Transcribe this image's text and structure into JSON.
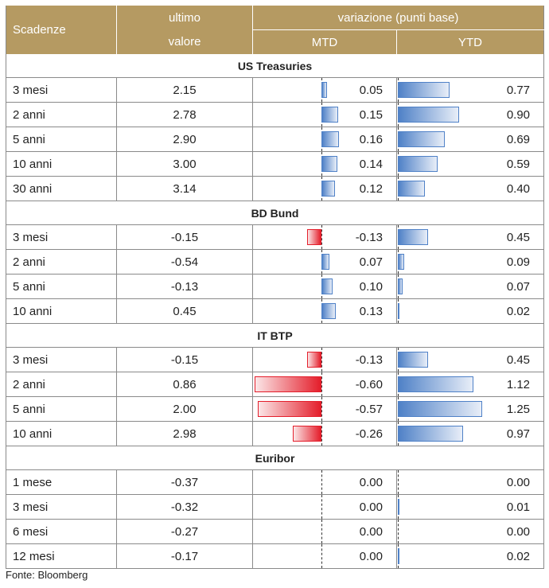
{
  "header": {
    "scadenze": "Scadenze",
    "ultimo_line1": "ultimo",
    "ultimo_line2": "valore",
    "variazione": "variazione (punti base)",
    "mtd": "MTD",
    "ytd": "YTD"
  },
  "sections": [
    {
      "title": "US Treasuries",
      "rows": [
        {
          "label": "3 mesi",
          "value": "2.15",
          "mtd": "0.05",
          "ytd": "0.77"
        },
        {
          "label": "2 anni",
          "value": "2.78",
          "mtd": "0.15",
          "ytd": "0.90"
        },
        {
          "label": "5 anni",
          "value": "2.90",
          "mtd": "0.16",
          "ytd": "0.69"
        },
        {
          "label": "10 anni",
          "value": "3.00",
          "mtd": "0.14",
          "ytd": "0.59"
        },
        {
          "label": "30 anni",
          "value": "3.14",
          "mtd": "0.12",
          "ytd": "0.40"
        }
      ]
    },
    {
      "title": "BD Bund",
      "rows": [
        {
          "label": "3 mesi",
          "value": "-0.15",
          "mtd": "-0.13",
          "ytd": "0.45"
        },
        {
          "label": "2 anni",
          "value": "-0.54",
          "mtd": "0.07",
          "ytd": "0.09"
        },
        {
          "label": "5 anni",
          "value": "-0.13",
          "mtd": "0.10",
          "ytd": "0.07"
        },
        {
          "label": "10 anni",
          "value": "0.45",
          "mtd": "0.13",
          "ytd": "0.02"
        }
      ]
    },
    {
      "title": "IT BTP",
      "rows": [
        {
          "label": "3 mesi",
          "value": "-0.15",
          "mtd": "-0.13",
          "ytd": "0.45"
        },
        {
          "label": "2 anni",
          "value": "0.86",
          "mtd": "-0.60",
          "ytd": "1.12"
        },
        {
          "label": "5 anni",
          "value": "2.00",
          "mtd": "-0.57",
          "ytd": "1.25"
        },
        {
          "label": "10 anni",
          "value": "2.98",
          "mtd": "-0.26",
          "ytd": "0.97"
        }
      ]
    },
    {
      "title": "Euribor",
      "rows": [
        {
          "label": "1 mese",
          "value": "-0.37",
          "mtd": "0.00",
          "ytd": "0.00"
        },
        {
          "label": "3 mesi",
          "value": "-0.32",
          "mtd": "0.00",
          "ytd": "0.01"
        },
        {
          "label": "6 mesi",
          "value": "-0.27",
          "mtd": "0.00",
          "ytd": "0.00"
        },
        {
          "label": "12 mesi",
          "value": "-0.17",
          "mtd": "0.00",
          "ytd": "0.02"
        }
      ]
    }
  ],
  "colors": {
    "header_bg": "#b59a62",
    "positive_bar": "#4f81c7",
    "negative_bar": "#e41e2b"
  },
  "source": "Fonte: Bloomberg"
}
